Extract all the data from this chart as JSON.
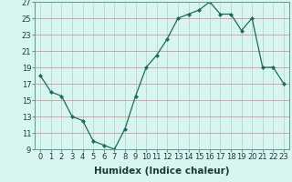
{
  "xlabel": "Humidex (Indice chaleur)",
  "x": [
    0,
    1,
    2,
    3,
    4,
    5,
    6,
    7,
    8,
    9,
    10,
    11,
    12,
    13,
    14,
    15,
    16,
    17,
    18,
    19,
    20,
    21,
    22,
    23
  ],
  "y": [
    18,
    16,
    15.5,
    13,
    12.5,
    10,
    9.5,
    9,
    11.5,
    15.5,
    19,
    20.5,
    22.5,
    25,
    25.5,
    26,
    27,
    25.5,
    25.5,
    23.5,
    25,
    19,
    19,
    17
  ],
  "line_color": "#1a6b5a",
  "marker": "D",
  "marker_size": 2.0,
  "bg_color": "#d8f5f0",
  "grid_color": "#aad4cc",
  "ylim": [
    9,
    27
  ],
  "yticks": [
    9,
    11,
    13,
    15,
    17,
    19,
    21,
    23,
    25,
    27
  ],
  "xticks": [
    0,
    1,
    2,
    3,
    4,
    5,
    6,
    7,
    8,
    9,
    10,
    11,
    12,
    13,
    14,
    15,
    16,
    17,
    18,
    19,
    20,
    21,
    22,
    23
  ],
  "tick_fontsize": 6.0,
  "xlabel_fontsize": 7.5,
  "line_width": 0.9
}
